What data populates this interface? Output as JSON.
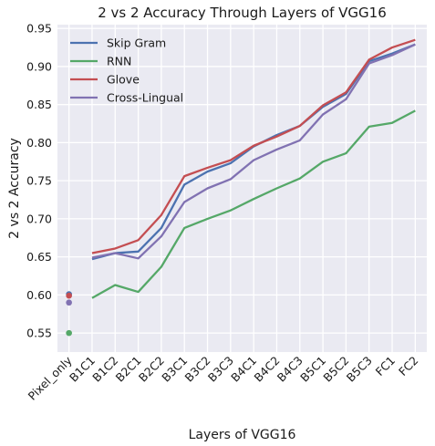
{
  "chart_data": {
    "type": "line",
    "title": "2 vs 2 Accuracy Through Layers of VGG16",
    "xlabel": "Layers of VGG16",
    "ylabel": "2 vs 2 Accuracy",
    "categories": [
      "Pixel_only",
      "B1C1",
      "B1C2",
      "B2C1",
      "B2C2",
      "B3C1",
      "B3C2",
      "B3C3",
      "B4C1",
      "B4C2",
      "B4C3",
      "B5C1",
      "B5C2",
      "B5C3",
      "FC1",
      "FC2"
    ],
    "ylim": [
      0.525,
      0.955
    ],
    "yticks": [
      0.55,
      0.6,
      0.65,
      0.7,
      0.75,
      0.8,
      0.85,
      0.9,
      0.95
    ],
    "ytick_labels": [
      "0.55",
      "0.60",
      "0.65",
      "0.70",
      "0.75",
      "0.80",
      "0.85",
      "0.90",
      "0.95"
    ],
    "grid": true,
    "background": "#eaeaf2",
    "legend_position": "top-left",
    "series": [
      {
        "name": "Skip Gram",
        "color": "#4c72b0",
        "values": [
          0.601,
          0.647,
          0.655,
          0.657,
          0.688,
          0.745,
          0.762,
          0.773,
          0.795,
          0.81,
          0.822,
          0.847,
          0.864,
          0.907,
          0.917,
          0.929
        ]
      },
      {
        "name": "RNN",
        "color": "#55a868",
        "values": [
          0.55,
          0.596,
          0.613,
          0.604,
          0.637,
          0.688,
          0.7,
          0.711,
          0.726,
          0.74,
          0.753,
          0.775,
          0.786,
          0.821,
          0.826,
          0.842
        ]
      },
      {
        "name": "Glove",
        "color": "#c44e52",
        "values": [
          0.599,
          0.655,
          0.661,
          0.672,
          0.705,
          0.756,
          0.767,
          0.777,
          0.796,
          0.808,
          0.822,
          0.849,
          0.866,
          0.909,
          0.925,
          0.935
        ]
      },
      {
        "name": "Cross-Lingual",
        "color": "#8172b2",
        "values": [
          0.59,
          0.649,
          0.655,
          0.648,
          0.677,
          0.722,
          0.74,
          0.752,
          0.777,
          0.791,
          0.803,
          0.837,
          0.857,
          0.904,
          0.915,
          0.929
        ]
      }
    ]
  }
}
